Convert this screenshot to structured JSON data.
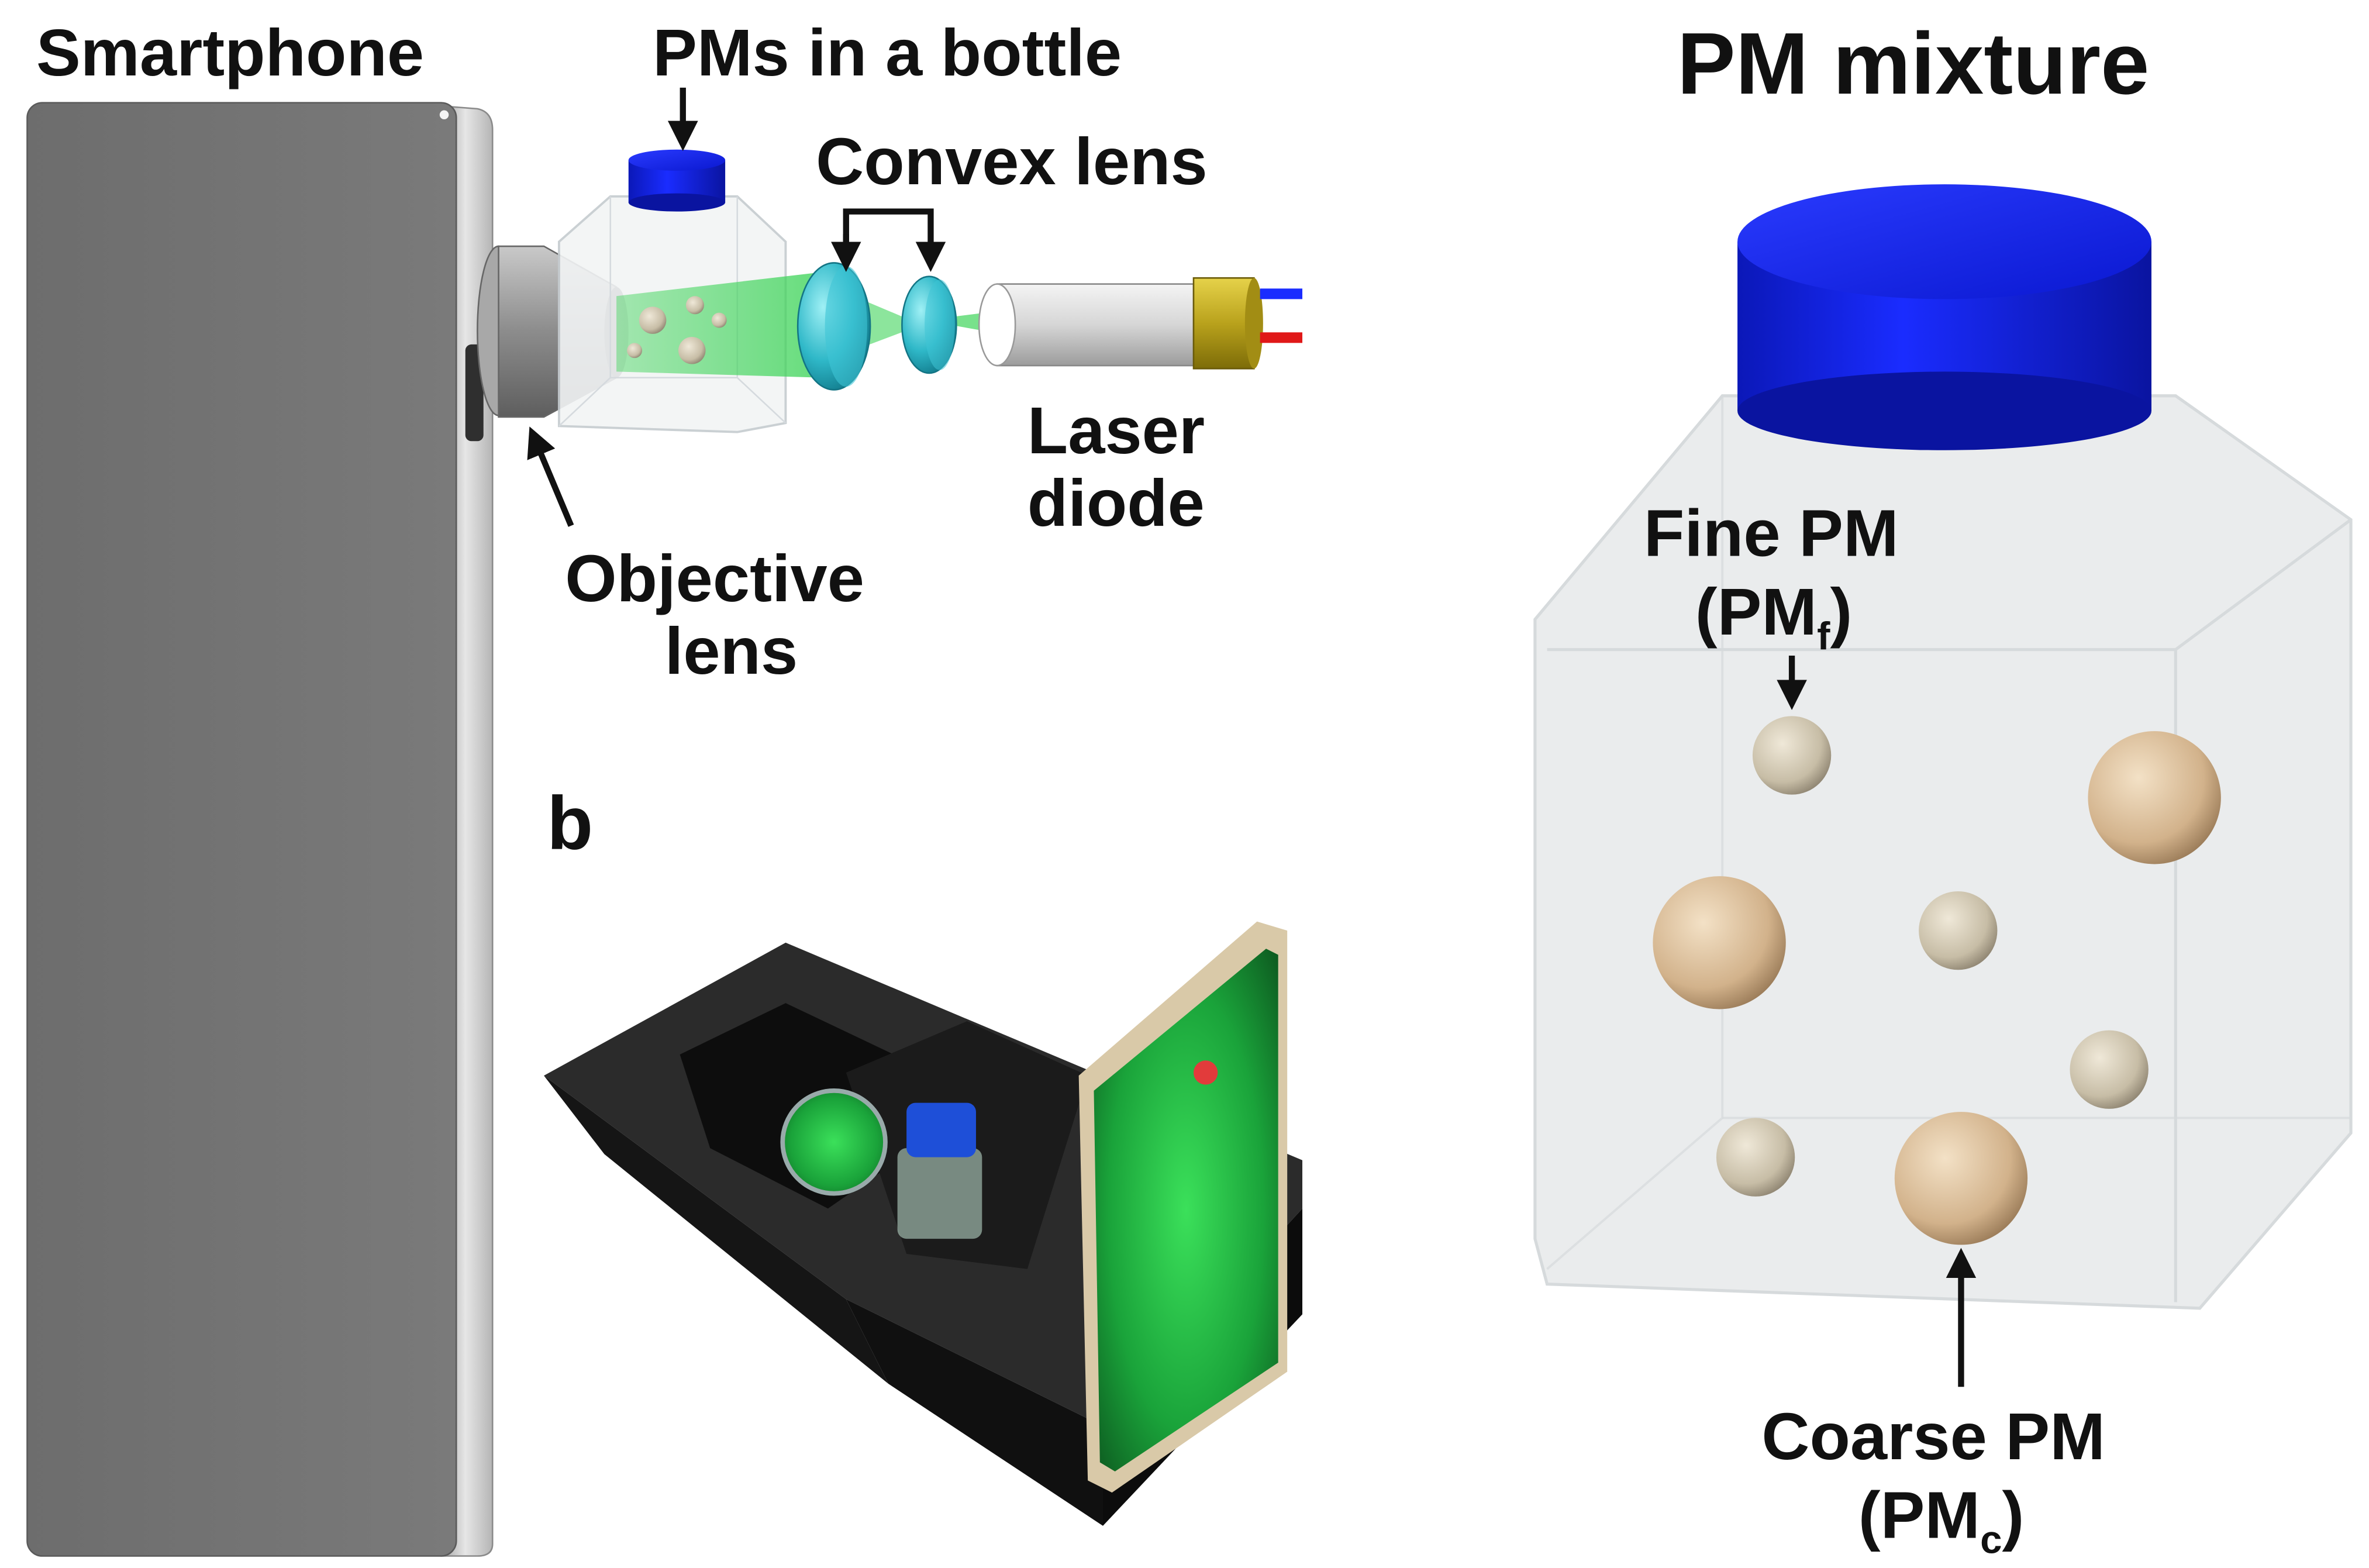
{
  "panel_a": {
    "smartphone_label": "Smartphone",
    "bottle_label": "PMs in a bottle",
    "convex_label": "Convex lens",
    "laser_label_1": "Laser",
    "laser_label_2": "diode",
    "objective_label_1": "Objective",
    "objective_label_2": "lens"
  },
  "panel_b": {
    "letter": "b"
  },
  "panel_c": {
    "title": "PM mixture",
    "fine_label_1": "Fine PM",
    "fine_label_2_prefix": "(PM",
    "fine_label_2_sub": "f",
    "fine_label_2_suffix": ")",
    "coarse_label_1": "Coarse PM",
    "coarse_label_2_prefix": "(PM",
    "coarse_label_2_sub": "c",
    "coarse_label_2_suffix": ")"
  },
  "colors": {
    "cap_blue": "#0a16e0",
    "laser_green": "#3fd45a",
    "lens_cyan": "#2fb8c8",
    "phone_gray": "#707070",
    "particle_fine": "#c9bfa9",
    "particle_coarse": "#d5b894",
    "box_black": "#1a1a1a"
  }
}
